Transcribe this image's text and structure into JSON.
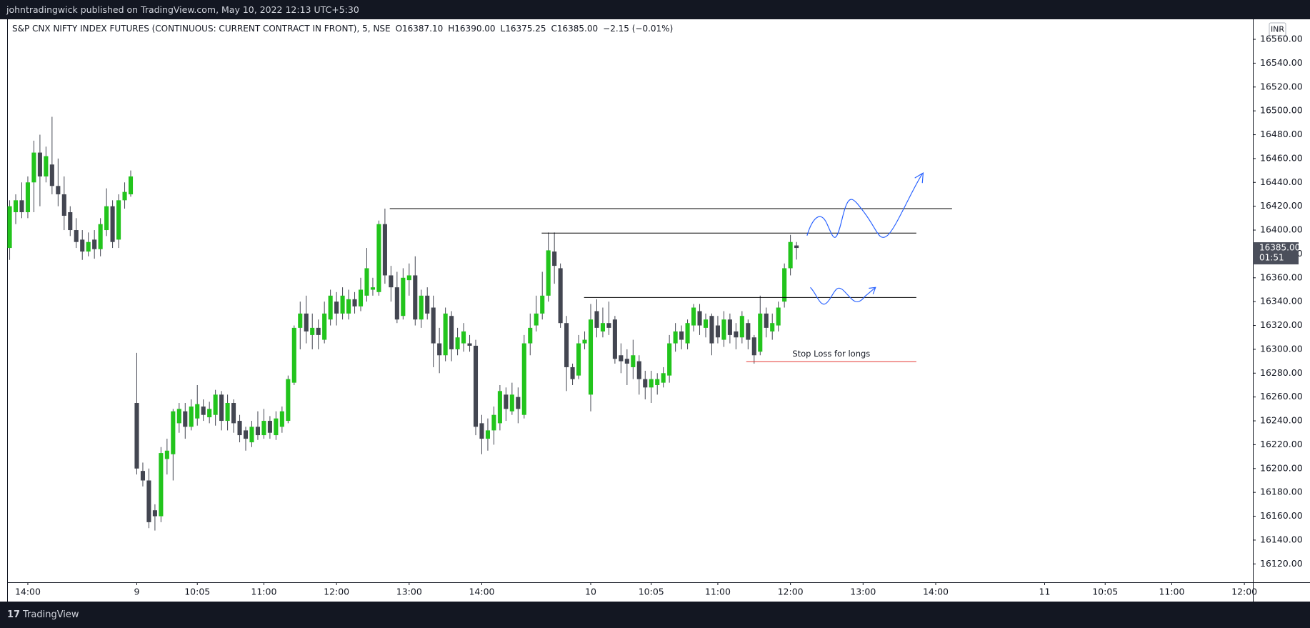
{
  "header": {
    "text": "johntradingwick published on TradingView.com, May 10, 2022 12:13 UTC+5:30"
  },
  "footer": {
    "brand": "TradingView"
  },
  "legend": {
    "symbol": "S&P CNX NIFTY INDEX FUTURES (CONTINUOUS: CURRENT CONTRACT IN FRONT), 5, NSE",
    "open": "O16387.10",
    "high": "H16390.00",
    "low": "L16375.25",
    "close": "C16385.00",
    "change": "−2.15 (−0.01%)"
  },
  "chart_data": {
    "type": "candlestick",
    "currency": "INR",
    "up_color": "#22c41c",
    "down_color": "#434651",
    "xlim": [
      -0.3,
      205.4
    ],
    "ylim": [
      16104.6,
      16576.8
    ],
    "xticks": [
      {
        "value": 3,
        "label": "14:00"
      },
      {
        "value": 21,
        "label": "9"
      },
      {
        "value": 31,
        "label": "10:05"
      },
      {
        "value": 42,
        "label": "11:00"
      },
      {
        "value": 54,
        "label": "12:00"
      },
      {
        "value": 66,
        "label": "13:00"
      },
      {
        "value": 78,
        "label": "14:00"
      },
      {
        "value": 96,
        "label": "10"
      },
      {
        "value": 106,
        "label": "10:05"
      },
      {
        "value": 117,
        "label": "11:00"
      },
      {
        "value": 129,
        "label": "12:00"
      },
      {
        "value": 141,
        "label": "13:00"
      },
      {
        "value": 153,
        "label": "14:00"
      },
      {
        "value": 171,
        "label": "11"
      },
      {
        "value": 181,
        "label": "10:05"
      },
      {
        "value": 192,
        "label": "11:00"
      },
      {
        "value": 204,
        "label": "12:00"
      }
    ],
    "yticks": [
      {
        "value": 16120,
        "label": "16120.00"
      },
      {
        "value": 16140,
        "label": "16140.00"
      },
      {
        "value": 16160,
        "label": "16160.00"
      },
      {
        "value": 16180,
        "label": "16180.00"
      },
      {
        "value": 16200,
        "label": "16200.00"
      },
      {
        "value": 16220,
        "label": "16220.00"
      },
      {
        "value": 16240,
        "label": "16240.00"
      },
      {
        "value": 16260,
        "label": "16260.00"
      },
      {
        "value": 16280,
        "label": "16280.00"
      },
      {
        "value": 16300,
        "label": "16300.00"
      },
      {
        "value": 16320,
        "label": "16320.00"
      },
      {
        "value": 16340,
        "label": "16340.00"
      },
      {
        "value": 16360,
        "label": "16360.00"
      },
      {
        "value": 16380,
        "label": "16380.00"
      },
      {
        "value": 16400,
        "label": "16400.00"
      },
      {
        "value": 16420,
        "label": "16420.00"
      },
      {
        "value": 16440,
        "label": "16440.00"
      },
      {
        "value": 16460,
        "label": "16460.00"
      },
      {
        "value": 16480,
        "label": "16480.00"
      },
      {
        "value": 16500,
        "label": "16500.00"
      },
      {
        "value": 16520,
        "label": "16520.00"
      },
      {
        "value": 16540,
        "label": "16540.00"
      },
      {
        "value": 16560,
        "label": "16560.00"
      }
    ],
    "last_price": {
      "value": 16385,
      "label": "16385.00"
    },
    "countdown": "01:51",
    "lines": [
      {
        "price": 16418,
        "x0": 62.8,
        "x1": 155.7,
        "color": "#000000"
      },
      {
        "price": 16397.5,
        "x0": 87.9,
        "x1": 149.8,
        "color": "#000000"
      },
      {
        "price": 16343.5,
        "x0": 94.9,
        "x1": 149.8,
        "color": "#000000"
      },
      {
        "price": 16289.6,
        "x0": 121.7,
        "x1": 149.8,
        "color": "#e53935",
        "text": "Stop Loss for longs"
      }
    ],
    "x": [
      0,
      1,
      2,
      3,
      4,
      5,
      6,
      7,
      8,
      9,
      10,
      11,
      12,
      13,
      14,
      15,
      16,
      17,
      18,
      19,
      20,
      21,
      22,
      23,
      24,
      25,
      26,
      27,
      28,
      29,
      30,
      31,
      32,
      33,
      34,
      35,
      36,
      37,
      38,
      39,
      40,
      41,
      42,
      43,
      44,
      45,
      46,
      47,
      48,
      49,
      50,
      51,
      52,
      53,
      54,
      55,
      56,
      57,
      58,
      59,
      60,
      61,
      62,
      63,
      64,
      65,
      66,
      67,
      68,
      69,
      70,
      71,
      72,
      73,
      74,
      75,
      76,
      77,
      78,
      79,
      80,
      81,
      82,
      83,
      84,
      85,
      86,
      87,
      88,
      89,
      90,
      91,
      92,
      93,
      94,
      95,
      96,
      97,
      98,
      99,
      100,
      101,
      102,
      103,
      104,
      105,
      106,
      107,
      108,
      109,
      110,
      111,
      112,
      113,
      114,
      115,
      116,
      117,
      118,
      119,
      120,
      121,
      122,
      123,
      124,
      125,
      126,
      127,
      128,
      129,
      130
    ],
    "open": [
      16385,
      16415,
      16425,
      16415,
      16440,
      16465,
      16445,
      16455,
      16437,
      16430,
      16415,
      16400,
      16392,
      16382,
      16392,
      16384,
      16400,
      16420,
      16392,
      16425,
      16430,
      16255,
      16198,
      16190,
      16165,
      16160,
      16208,
      16212,
      16238,
      16248,
      16235,
      16242,
      16252,
      16243,
      16245,
      16262,
      16240,
      16255,
      16240,
      16232,
      16222,
      16235,
      16228,
      16240,
      16228,
      16235,
      16240,
      16272,
      16318,
      16330,
      16312,
      16318,
      16308,
      16325,
      16340,
      16330,
      16330,
      16342,
      16336,
      16345,
      16350,
      16348,
      16405,
      16362,
      16352,
      16328,
      16358,
      16362,
      16325,
      16345,
      16335,
      16305,
      16295,
      16328,
      16300,
      16305,
      16305,
      16303,
      16238,
      16225,
      16232,
      16238,
      16262,
      16248,
      16260,
      16245,
      16305,
      16320,
      16330,
      16345,
      16382,
      16368,
      16322,
      16285,
      16278,
      16305,
      16262,
      16332,
      16315,
      16322,
      16325,
      16295,
      16292,
      16285,
      16290,
      16275,
      16268,
      16270,
      16272,
      16278,
      16305,
      16315,
      16305,
      16320,
      16332,
      16318,
      16328,
      16320,
      16308,
      16325,
      16315,
      16310,
      16322,
      16310,
      16298,
      16330,
      16315,
      16320,
      16340,
      16368,
      16387.1
    ],
    "high": [
      16425,
      16430,
      16440,
      16445,
      16475,
      16480,
      16470,
      16495,
      16460,
      16445,
      16420,
      16410,
      16400,
      16398,
      16400,
      16410,
      16435,
      16425,
      16430,
      16440,
      16450,
      16297,
      16205,
      16200,
      16170,
      16218,
      16225,
      16250,
      16255,
      16255,
      16258,
      16270,
      16258,
      16256,
      16266,
      16265,
      16262,
      16258,
      16245,
      16235,
      16240,
      16248,
      16250,
      16244,
      16248,
      16252,
      16278,
      16320,
      16340,
      16345,
      16330,
      16325,
      16340,
      16350,
      16348,
      16352,
      16350,
      16348,
      16360,
      16385,
      16360,
      16408,
      16418,
      16370,
      16365,
      16368,
      16372,
      16378,
      16350,
      16352,
      16345,
      16318,
      16335,
      16332,
      16318,
      16322,
      16312,
      16308,
      16245,
      16242,
      16252,
      16270,
      16268,
      16272,
      16268,
      16312,
      16330,
      16345,
      16365,
      16398,
      16398,
      16372,
      16328,
      16288,
      16312,
      16315,
      16338,
      16342,
      16335,
      16340,
      16328,
      16305,
      16300,
      16308,
      16295,
      16282,
      16282,
      16280,
      16285,
      16312,
      16322,
      16320,
      16325,
      16338,
      16338,
      16330,
      16330,
      16328,
      16332,
      16330,
      16322,
      16332,
      16325,
      16312,
      16345,
      16335,
      16330,
      16340,
      16372,
      16396,
      16390
    ],
    "low": [
      16375,
      16405,
      16410,
      16410,
      16415,
      16420,
      16440,
      16430,
      16420,
      16400,
      16395,
      16385,
      16375,
      16378,
      16376,
      16378,
      16395,
      16385,
      16385,
      16418,
      16428,
      16195,
      16185,
      16150,
      16148,
      16155,
      16195,
      16190,
      16230,
      16225,
      16232,
      16236,
      16240,
      16238,
      16236,
      16232,
      16232,
      16230,
      16222,
      16215,
      16218,
      16224,
      16225,
      16225,
      16224,
      16230,
      16238,
      16270,
      16300,
      16305,
      16300,
      16300,
      16305,
      16320,
      16320,
      16325,
      16325,
      16330,
      16332,
      16340,
      16345,
      16345,
      16355,
      16340,
      16322,
      16325,
      16345,
      16320,
      16318,
      16325,
      16285,
      16280,
      16290,
      16290,
      16295,
      16298,
      16298,
      16228,
      16212,
      16215,
      16220,
      16232,
      16240,
      16245,
      16238,
      16242,
      16295,
      16315,
      16325,
      16340,
      16355,
      16318,
      16265,
      16270,
      16275,
      16300,
      16248,
      16310,
      16310,
      16312,
      16288,
      16280,
      16270,
      16275,
      16262,
      16258,
      16255,
      16262,
      16268,
      16272,
      16298,
      16300,
      16300,
      16315,
      16312,
      16310,
      16295,
      16305,
      16302,
      16305,
      16300,
      16305,
      16300,
      16288,
      16295,
      16310,
      16308,
      16315,
      16335,
      16362,
      16375.25
    ],
    "close": [
      16420,
      16425,
      16415,
      16440,
      16465,
      16445,
      16462,
      16437,
      16430,
      16412,
      16400,
      16390,
      16382,
      16390,
      16384,
      16405,
      16420,
      16390,
      16425,
      16432,
      16445,
      16200,
      16190,
      16155,
      16160,
      16213,
      16215,
      16248,
      16250,
      16235,
      16252,
      16254,
      16245,
      16250,
      16262,
      16240,
      16255,
      16238,
      16228,
      16225,
      16235,
      16228,
      16240,
      16230,
      16242,
      16248,
      16275,
      16318,
      16330,
      16315,
      16318,
      16312,
      16330,
      16345,
      16330,
      16345,
      16342,
      16336,
      16350,
      16368,
      16352,
      16405,
      16362,
      16352,
      16325,
      16360,
      16362,
      16325,
      16345,
      16330,
      16305,
      16295,
      16330,
      16300,
      16310,
      16315,
      16303,
      16235,
      16225,
      16232,
      16245,
      16265,
      16250,
      16262,
      16250,
      16305,
      16318,
      16330,
      16345,
      16383,
      16370,
      16322,
      16285,
      16275,
      16305,
      16308,
      16325,
      16318,
      16322,
      16318,
      16292,
      16290,
      16288,
      16295,
      16275,
      16268,
      16275,
      16275,
      16280,
      16305,
      16315,
      16308,
      16322,
      16335,
      16320,
      16325,
      16305,
      16310,
      16325,
      16312,
      16310,
      16328,
      16308,
      16295,
      16330,
      16318,
      16322,
      16335,
      16368,
      16390,
      16385
    ]
  }
}
